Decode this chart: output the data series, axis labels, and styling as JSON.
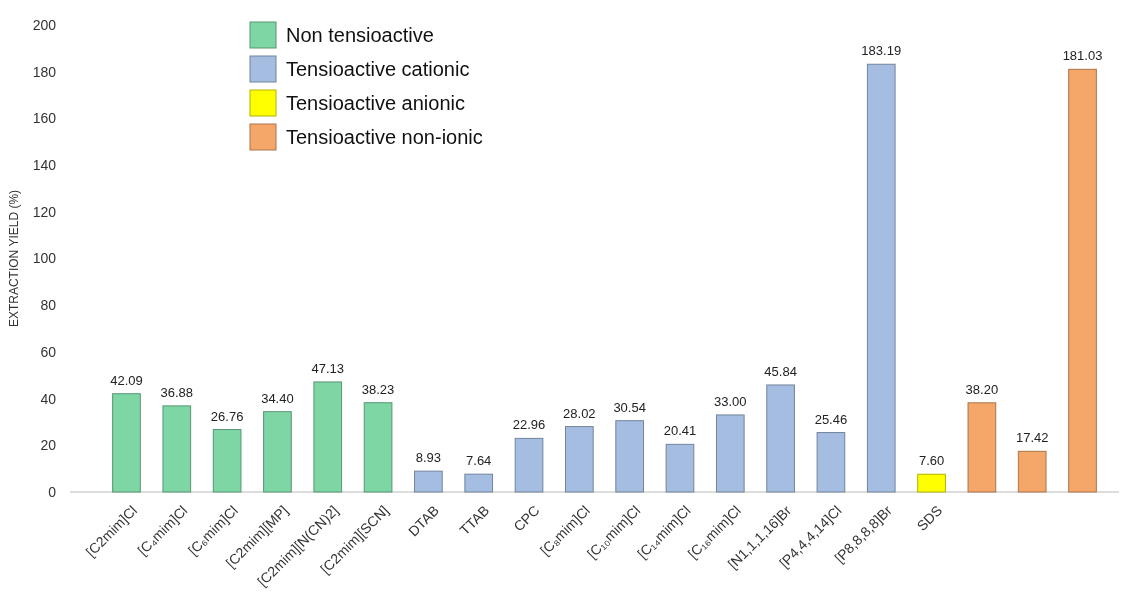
{
  "chart_data": {
    "type": "bar",
    "ylabel": "EXTRACTION YIELD (%)",
    "categories": [
      "[C2mim]Cl",
      "[C₄mim]Cl",
      "[C₆mim]Cl",
      "[C2mim][MP]",
      "[C2mim][N(CN)2]",
      "[C2mim][SCN]",
      "DTAB",
      "TTAB",
      "CPC",
      "[C₈mim]Cl",
      "[C₁₀mim]Cl",
      "[C₁₄mim]Cl",
      "[C₁₆mim]Cl",
      "[N1,1,1,16]Br",
      "[P4,4,4,14]Cl",
      "[P8,8,8,8]Br",
      "SDS",
      null,
      null,
      null
    ],
    "series": [
      {
        "name": "Non tensioactive",
        "color": "#7dd6a4",
        "values": [
          42.09,
          36.88,
          26.76,
          34.4,
          47.13,
          38.23,
          null,
          null,
          null,
          null,
          null,
          null,
          null,
          null,
          null,
          null,
          null,
          null,
          null,
          null
        ]
      },
      {
        "name": "Tensioactive cationic",
        "color": "#a4bde0",
        "values": [
          null,
          null,
          null,
          null,
          null,
          null,
          8.93,
          7.64,
          22.96,
          28.02,
          30.54,
          20.41,
          33.0,
          45.84,
          25.46,
          183.19,
          null,
          null,
          null,
          null
        ]
      },
      {
        "name": "Tensioactive anionic",
        "color": "#ffff00",
        "values": [
          null,
          null,
          null,
          null,
          null,
          null,
          null,
          null,
          null,
          null,
          null,
          null,
          null,
          null,
          null,
          null,
          7.6,
          null,
          null,
          null
        ]
      },
      {
        "name": "Tensioactive non-ionic",
        "color": "#f4a769",
        "values": [
          null,
          null,
          null,
          null,
          null,
          null,
          null,
          null,
          null,
          null,
          null,
          null,
          null,
          null,
          null,
          null,
          null,
          38.2,
          17.42,
          181.03
        ]
      }
    ],
    "value_labels": [
      "42.09",
      "36.88",
      "26.76",
      "34.40",
      "47.13",
      "38.23",
      "8.93",
      "7.64",
      "22.96",
      "28.02",
      "30.54",
      "20.41",
      "33.00",
      "45.84",
      "25.46",
      "183.19",
      "7.60",
      "38.20",
      "17.42",
      "181.03"
    ],
    "ylim": [
      0,
      200
    ],
    "yticks": [
      0,
      20,
      40,
      60,
      80,
      100,
      120,
      140,
      160,
      180,
      200
    ],
    "grid": false,
    "legend": "top"
  }
}
